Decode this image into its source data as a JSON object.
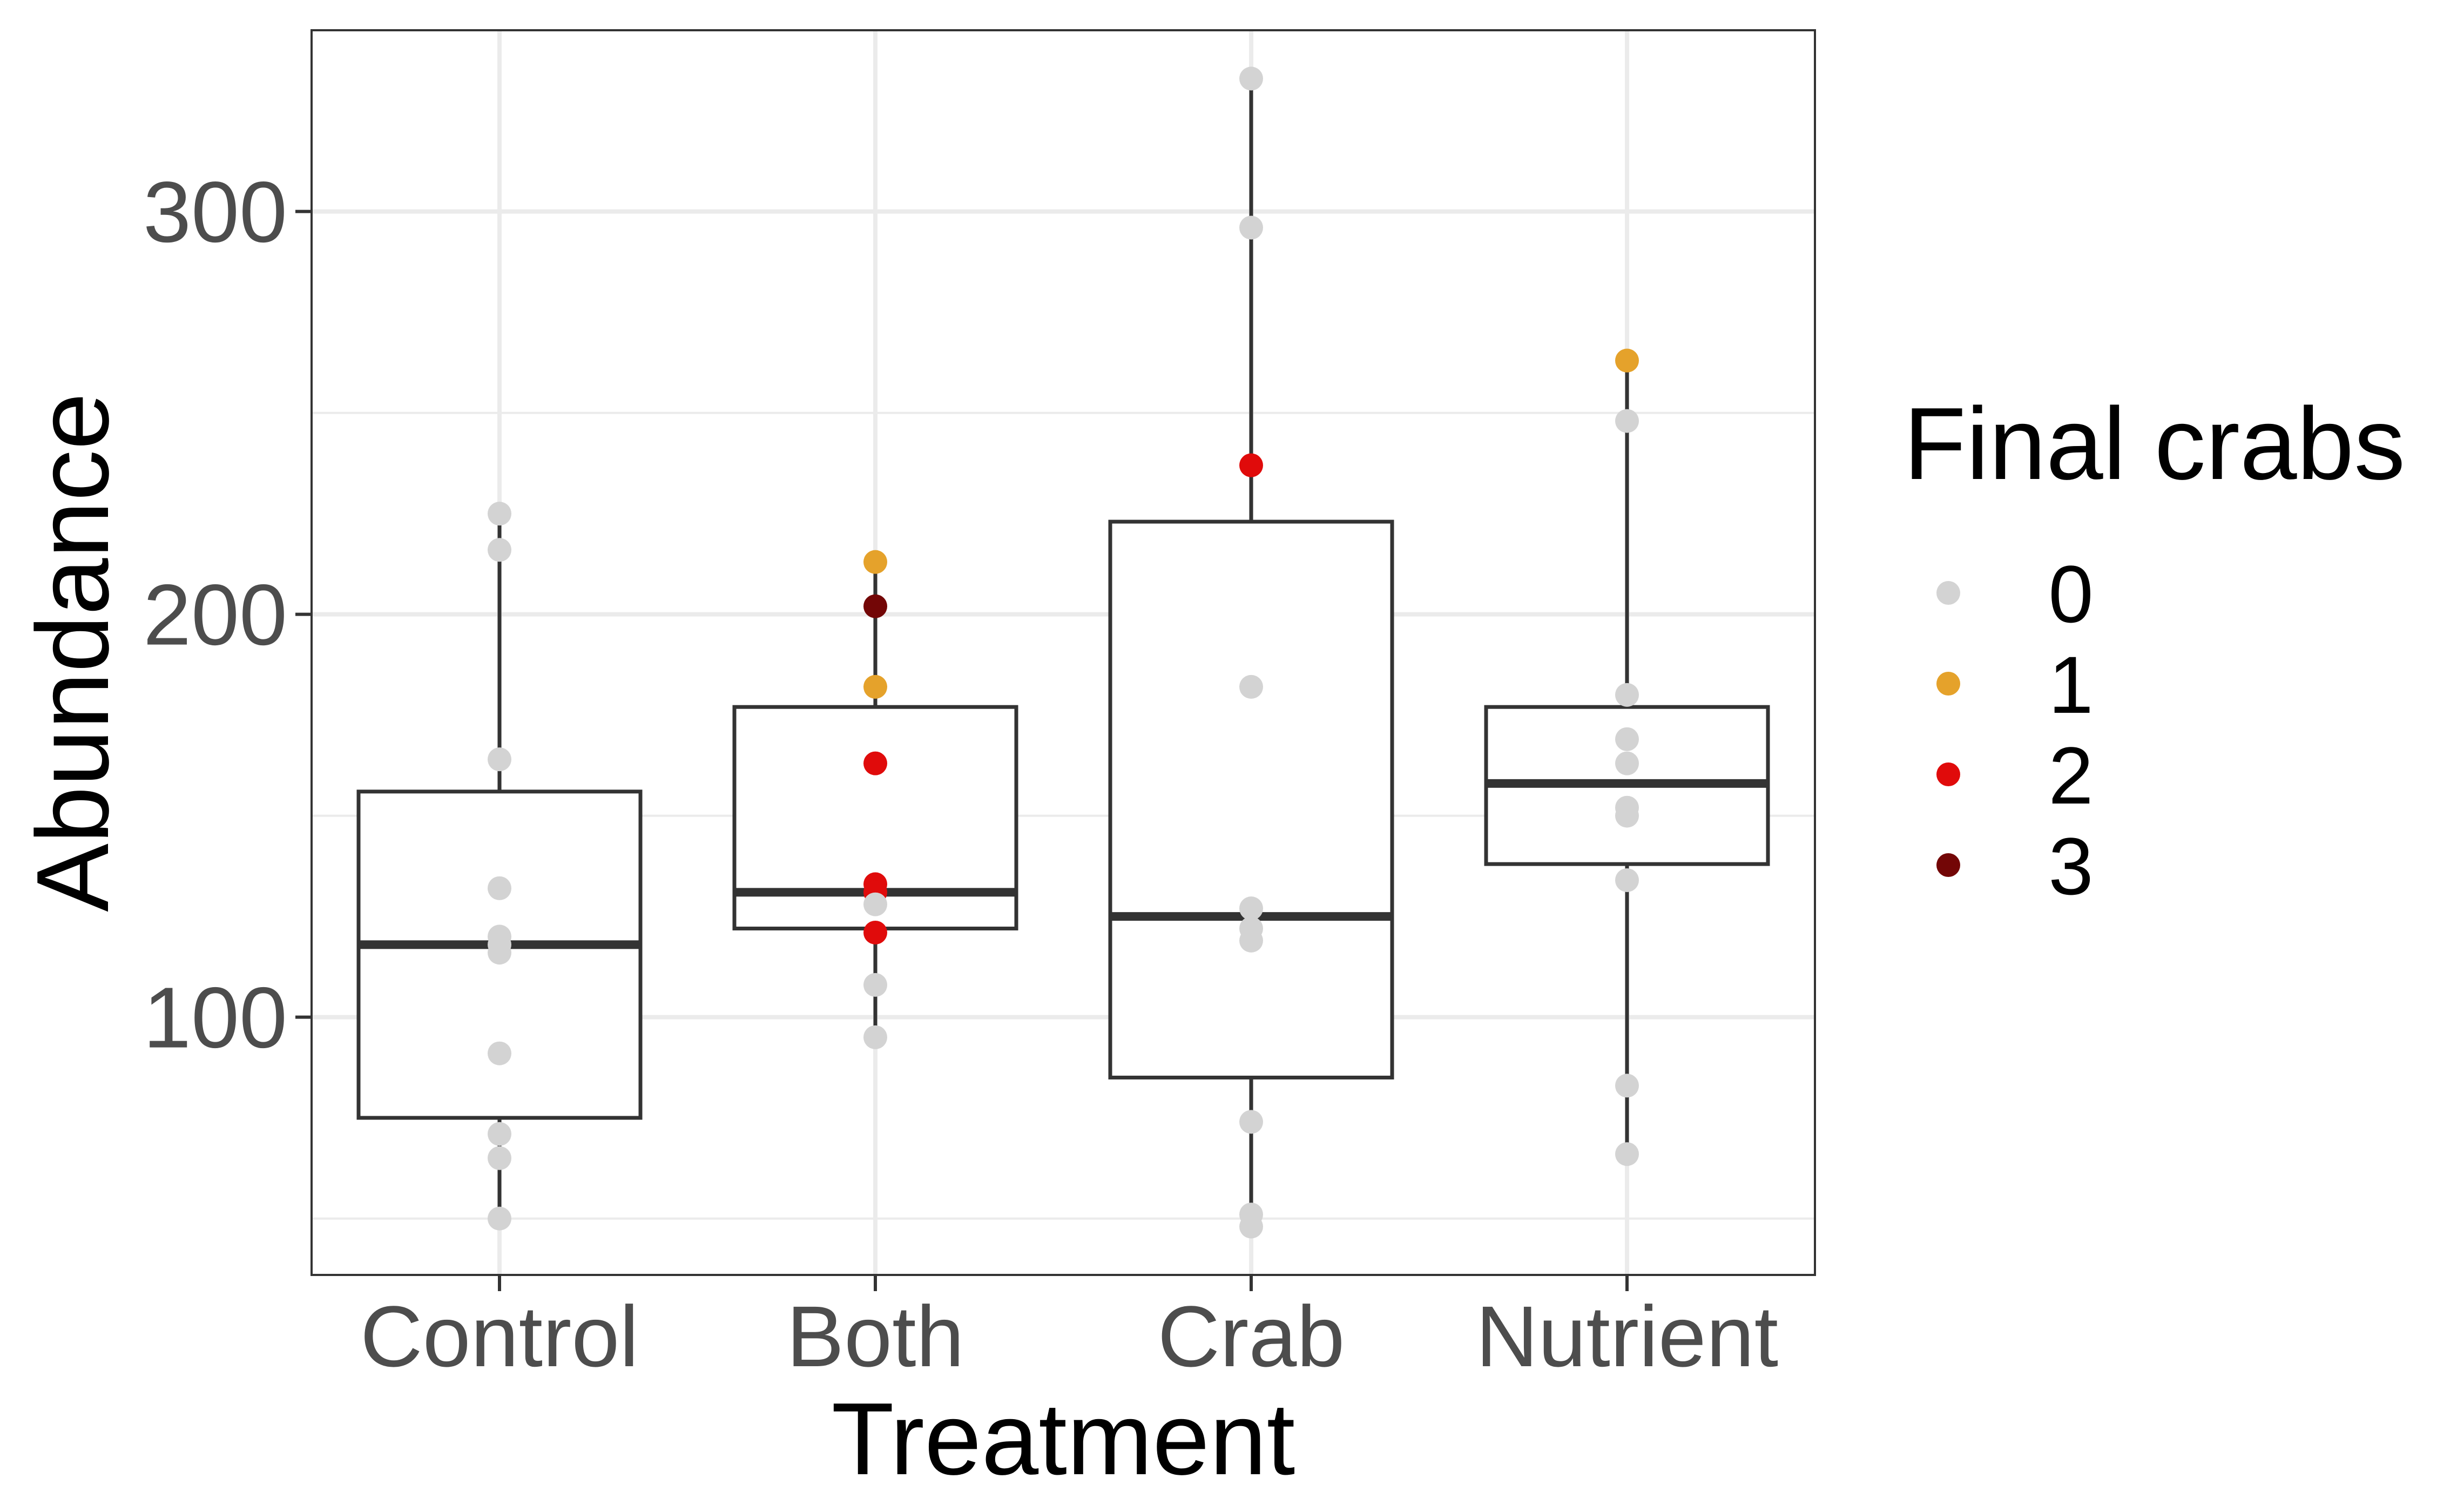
{
  "chart_data": {
    "type": "boxplot",
    "xlabel": "Treatment",
    "ylabel": "Abundance",
    "ylim": [
      36,
      345
    ],
    "y_ticks": [
      100,
      200,
      300
    ],
    "y_minor_ticks": [
      50,
      150,
      250
    ],
    "categories": [
      "Control",
      "Both",
      "Crab",
      "Nutrient"
    ],
    "grid": true,
    "legend": {
      "title": "Final crabs",
      "position": "right",
      "entries": [
        {
          "label": "0",
          "color": "#d3d3d3"
        },
        {
          "label": "1",
          "color": "#e5a22b"
        },
        {
          "label": "2",
          "color": "#e00b0b"
        },
        {
          "label": "3",
          "color": "#730606"
        }
      ]
    },
    "boxes": [
      {
        "category": "Control",
        "whisker_low": 50,
        "q1": 75,
        "median": 118,
        "q3": 156,
        "whisker_high": 225
      },
      {
        "category": "Both",
        "whisker_low": 95,
        "q1": 122,
        "median": 131,
        "q3": 177,
        "whisker_high": 213
      },
      {
        "category": "Crab",
        "whisker_low": 48,
        "q1": 85,
        "median": 125,
        "q3": 223,
        "whisker_high": 333
      },
      {
        "category": "Nutrient",
        "whisker_low": 65,
        "q1": 138,
        "median": 158,
        "q3": 177,
        "whisker_high": 263
      }
    ],
    "points": [
      {
        "category": "Control",
        "y": 225,
        "crabs": "0"
      },
      {
        "category": "Control",
        "y": 216,
        "crabs": "0"
      },
      {
        "category": "Control",
        "y": 164,
        "crabs": "0"
      },
      {
        "category": "Control",
        "y": 132,
        "crabs": "0"
      },
      {
        "category": "Control",
        "y": 120,
        "crabs": "0"
      },
      {
        "category": "Control",
        "y": 118,
        "crabs": "0"
      },
      {
        "category": "Control",
        "y": 116,
        "crabs": "0"
      },
      {
        "category": "Control",
        "y": 91,
        "crabs": "0"
      },
      {
        "category": "Control",
        "y": 71,
        "crabs": "0"
      },
      {
        "category": "Control",
        "y": 65,
        "crabs": "0"
      },
      {
        "category": "Control",
        "y": 50,
        "crabs": "0"
      },
      {
        "category": "Both",
        "y": 213,
        "crabs": "1"
      },
      {
        "category": "Both",
        "y": 202,
        "crabs": "3"
      },
      {
        "category": "Both",
        "y": 182,
        "crabs": "1"
      },
      {
        "category": "Both",
        "y": 163,
        "crabs": "2"
      },
      {
        "category": "Both",
        "y": 133,
        "crabs": "2"
      },
      {
        "category": "Both",
        "y": 131,
        "crabs": "2"
      },
      {
        "category": "Both",
        "y": 128,
        "crabs": "0"
      },
      {
        "category": "Both",
        "y": 121,
        "crabs": "2"
      },
      {
        "category": "Both",
        "y": 108,
        "crabs": "0"
      },
      {
        "category": "Both",
        "y": 95,
        "crabs": "0"
      },
      {
        "category": "Crab",
        "y": 333,
        "crabs": "0"
      },
      {
        "category": "Crab",
        "y": 296,
        "crabs": "0"
      },
      {
        "category": "Crab",
        "y": 237,
        "crabs": "2"
      },
      {
        "category": "Crab",
        "y": 182,
        "crabs": "0"
      },
      {
        "category": "Crab",
        "y": 127,
        "crabs": "0"
      },
      {
        "category": "Crab",
        "y": 122,
        "crabs": "0"
      },
      {
        "category": "Crab",
        "y": 119,
        "crabs": "0"
      },
      {
        "category": "Crab",
        "y": 74,
        "crabs": "0"
      },
      {
        "category": "Crab",
        "y": 51,
        "crabs": "0"
      },
      {
        "category": "Crab",
        "y": 48,
        "crabs": "0"
      },
      {
        "category": "Nutrient",
        "y": 263,
        "crabs": "1"
      },
      {
        "category": "Nutrient",
        "y": 248,
        "crabs": "0"
      },
      {
        "category": "Nutrient",
        "y": 180,
        "crabs": "0"
      },
      {
        "category": "Nutrient",
        "y": 169,
        "crabs": "0"
      },
      {
        "category": "Nutrient",
        "y": 163,
        "crabs": "0"
      },
      {
        "category": "Nutrient",
        "y": 152,
        "crabs": "0"
      },
      {
        "category": "Nutrient",
        "y": 150,
        "crabs": "0"
      },
      {
        "category": "Nutrient",
        "y": 134,
        "crabs": "0"
      },
      {
        "category": "Nutrient",
        "y": 83,
        "crabs": "0"
      },
      {
        "category": "Nutrient",
        "y": 66,
        "crabs": "0"
      }
    ]
  }
}
